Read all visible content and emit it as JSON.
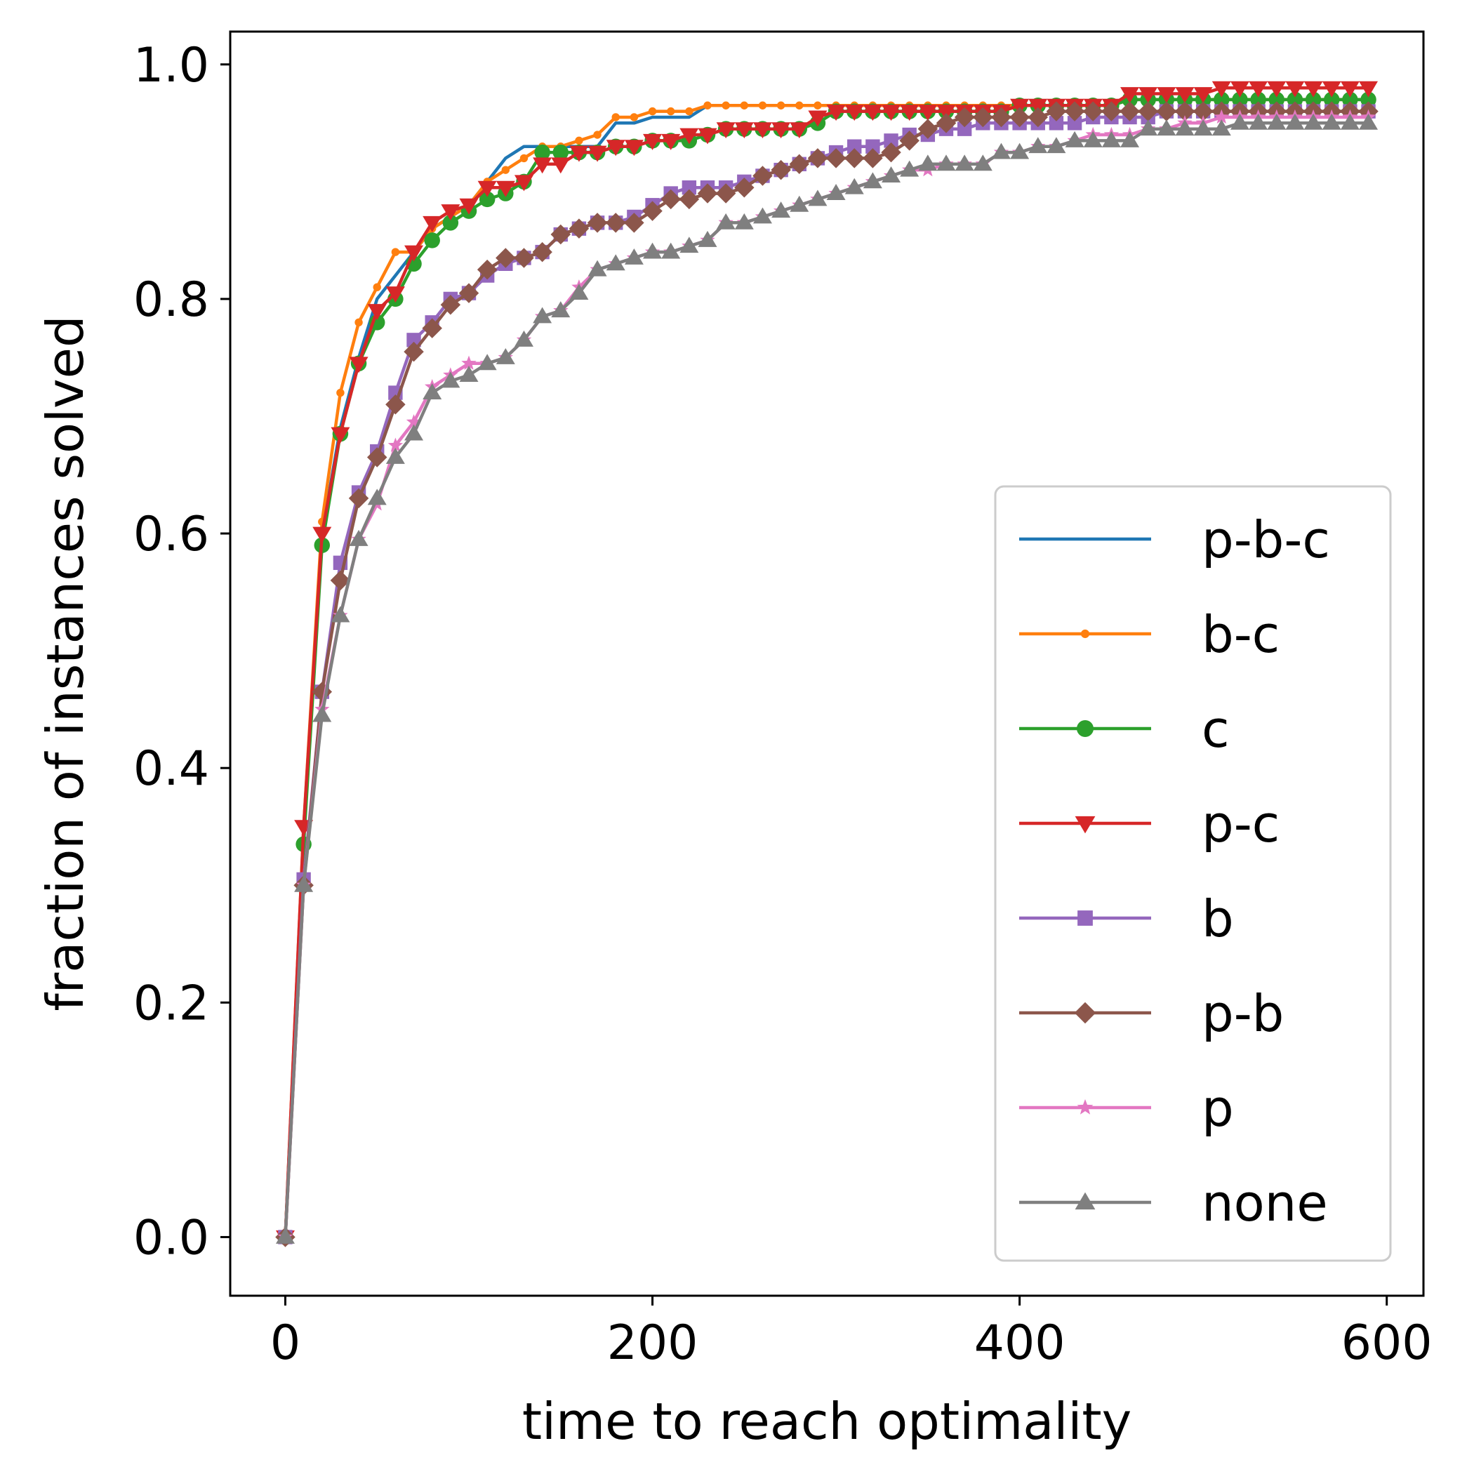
{
  "chart_data": {
    "type": "line",
    "title": "",
    "xlabel": "time to reach optimality",
    "ylabel": "fraction of instances solved",
    "xlim": [
      -30,
      620
    ],
    "ylim": [
      -0.05,
      1.028
    ],
    "xticks": [
      0,
      200,
      400,
      600
    ],
    "xtick_labels": [
      "0",
      "200",
      "400",
      "600"
    ],
    "yticks": [
      0.0,
      0.2,
      0.4,
      0.6,
      0.8,
      1.0
    ],
    "ytick_labels": [
      "0.0",
      "0.2",
      "0.4",
      "0.6",
      "0.8",
      "1.0"
    ],
    "grid": false,
    "legend_position": "lower-right",
    "x": [
      0,
      10,
      20,
      30,
      40,
      50,
      60,
      70,
      80,
      90,
      100,
      110,
      120,
      130,
      140,
      150,
      160,
      170,
      180,
      190,
      200,
      210,
      220,
      230,
      240,
      250,
      260,
      270,
      280,
      290,
      300,
      310,
      320,
      330,
      340,
      350,
      360,
      370,
      380,
      390,
      400,
      410,
      420,
      430,
      440,
      450,
      460,
      470,
      480,
      490,
      500,
      510,
      520,
      530,
      540,
      550,
      560,
      570,
      580,
      590
    ],
    "series": [
      {
        "name": "p-b-c",
        "color": "#1f77b4",
        "marker": "none",
        "values": [
          0.0,
          0.34,
          0.6,
          0.69,
          0.75,
          0.8,
          0.82,
          0.84,
          0.86,
          0.87,
          0.88,
          0.9,
          0.92,
          0.93,
          0.93,
          0.93,
          0.93,
          0.93,
          0.95,
          0.95,
          0.955,
          0.955,
          0.955,
          0.965,
          0.965,
          0.965,
          0.965,
          0.965,
          0.965,
          0.965,
          0.965,
          0.965,
          0.965,
          0.965,
          0.965,
          0.965,
          0.965,
          0.965,
          0.965,
          0.965,
          0.965,
          0.965,
          0.965,
          0.965,
          0.965,
          0.965,
          0.97,
          0.97,
          0.97,
          0.97,
          0.97,
          0.97,
          0.97,
          0.97,
          0.97,
          0.97,
          0.97,
          0.97,
          0.97,
          0.97
        ]
      },
      {
        "name": "b-c",
        "color": "#ff7f0e",
        "marker": "point",
        "values": [
          0.0,
          0.35,
          0.61,
          0.72,
          0.78,
          0.81,
          0.84,
          0.84,
          0.86,
          0.87,
          0.88,
          0.9,
          0.91,
          0.92,
          0.93,
          0.93,
          0.935,
          0.94,
          0.955,
          0.955,
          0.96,
          0.96,
          0.96,
          0.965,
          0.965,
          0.965,
          0.965,
          0.965,
          0.965,
          0.965,
          0.965,
          0.965,
          0.965,
          0.965,
          0.965,
          0.965,
          0.965,
          0.965,
          0.965,
          0.965,
          0.965,
          0.965,
          0.965,
          0.965,
          0.965,
          0.965,
          0.97,
          0.97,
          0.97,
          0.97,
          0.97,
          0.97,
          0.97,
          0.97,
          0.97,
          0.97,
          0.97,
          0.97,
          0.97,
          0.97
        ]
      },
      {
        "name": "c",
        "color": "#2ca02c",
        "marker": "circle",
        "values": [
          0.0,
          0.335,
          0.59,
          0.685,
          0.745,
          0.78,
          0.8,
          0.83,
          0.85,
          0.865,
          0.875,
          0.885,
          0.89,
          0.9,
          0.925,
          0.925,
          0.925,
          0.925,
          0.93,
          0.93,
          0.935,
          0.935,
          0.935,
          0.94,
          0.945,
          0.945,
          0.945,
          0.945,
          0.945,
          0.95,
          0.96,
          0.96,
          0.96,
          0.96,
          0.96,
          0.96,
          0.96,
          0.96,
          0.96,
          0.96,
          0.965,
          0.965,
          0.965,
          0.965,
          0.965,
          0.965,
          0.97,
          0.97,
          0.97,
          0.97,
          0.97,
          0.97,
          0.97,
          0.97,
          0.97,
          0.97,
          0.97,
          0.97,
          0.97,
          0.97
        ]
      },
      {
        "name": "p-c",
        "color": "#d62728",
        "marker": "triangle-down",
        "values": [
          0.0,
          0.35,
          0.6,
          0.685,
          0.745,
          0.79,
          0.805,
          0.84,
          0.865,
          0.875,
          0.88,
          0.895,
          0.895,
          0.9,
          0.915,
          0.915,
          0.925,
          0.925,
          0.93,
          0.93,
          0.935,
          0.935,
          0.94,
          0.94,
          0.945,
          0.945,
          0.945,
          0.945,
          0.945,
          0.955,
          0.96,
          0.96,
          0.96,
          0.96,
          0.96,
          0.96,
          0.96,
          0.96,
          0.96,
          0.96,
          0.965,
          0.965,
          0.965,
          0.965,
          0.965,
          0.965,
          0.975,
          0.975,
          0.975,
          0.975,
          0.975,
          0.98,
          0.98,
          0.98,
          0.98,
          0.98,
          0.98,
          0.98,
          0.98,
          0.98
        ]
      },
      {
        "name": "b",
        "color": "#9467bd",
        "marker": "square",
        "values": [
          0.0,
          0.305,
          0.465,
          0.575,
          0.635,
          0.67,
          0.72,
          0.765,
          0.78,
          0.8,
          0.805,
          0.82,
          0.83,
          0.835,
          0.84,
          0.855,
          0.86,
          0.865,
          0.865,
          0.87,
          0.88,
          0.89,
          0.895,
          0.895,
          0.895,
          0.9,
          0.905,
          0.91,
          0.915,
          0.92,
          0.925,
          0.93,
          0.93,
          0.935,
          0.94,
          0.94,
          0.945,
          0.945,
          0.95,
          0.95,
          0.95,
          0.95,
          0.95,
          0.95,
          0.955,
          0.955,
          0.955,
          0.955,
          0.96,
          0.96,
          0.96,
          0.96,
          0.96,
          0.96,
          0.96,
          0.96,
          0.96,
          0.96,
          0.96,
          0.96
        ]
      },
      {
        "name": "p-b",
        "color": "#8c564b",
        "marker": "diamond",
        "values": [
          0.0,
          0.3,
          0.465,
          0.56,
          0.63,
          0.665,
          0.71,
          0.755,
          0.775,
          0.795,
          0.805,
          0.825,
          0.835,
          0.835,
          0.84,
          0.855,
          0.86,
          0.865,
          0.865,
          0.865,
          0.875,
          0.885,
          0.885,
          0.89,
          0.89,
          0.895,
          0.905,
          0.91,
          0.915,
          0.92,
          0.92,
          0.92,
          0.92,
          0.925,
          0.935,
          0.945,
          0.95,
          0.955,
          0.955,
          0.955,
          0.955,
          0.955,
          0.96,
          0.96,
          0.96,
          0.96,
          0.96,
          0.96,
          0.96,
          0.96,
          0.96,
          0.96,
          0.96,
          0.96,
          0.96,
          0.96,
          0.96,
          0.96,
          0.96,
          0.96
        ]
      },
      {
        "name": "p",
        "color": "#e377c2",
        "marker": "star",
        "values": [
          0.0,
          0.3,
          0.45,
          0.53,
          0.595,
          0.625,
          0.675,
          0.695,
          0.725,
          0.735,
          0.745,
          0.745,
          0.75,
          0.765,
          0.785,
          0.79,
          0.81,
          0.825,
          0.83,
          0.835,
          0.84,
          0.84,
          0.845,
          0.85,
          0.865,
          0.865,
          0.87,
          0.875,
          0.88,
          0.885,
          0.89,
          0.895,
          0.9,
          0.905,
          0.91,
          0.91,
          0.915,
          0.915,
          0.915,
          0.925,
          0.925,
          0.93,
          0.93,
          0.935,
          0.94,
          0.94,
          0.94,
          0.945,
          0.945,
          0.95,
          0.95,
          0.955,
          0.955,
          0.955,
          0.955,
          0.955,
          0.955,
          0.955,
          0.955,
          0.955
        ]
      },
      {
        "name": "none",
        "color": "#7f7f7f",
        "marker": "triangle-up",
        "values": [
          0.0,
          0.3,
          0.445,
          0.53,
          0.595,
          0.63,
          0.665,
          0.685,
          0.72,
          0.73,
          0.735,
          0.745,
          0.75,
          0.765,
          0.785,
          0.79,
          0.805,
          0.825,
          0.83,
          0.835,
          0.84,
          0.84,
          0.845,
          0.85,
          0.865,
          0.865,
          0.87,
          0.875,
          0.88,
          0.885,
          0.89,
          0.895,
          0.9,
          0.905,
          0.91,
          0.915,
          0.915,
          0.915,
          0.915,
          0.925,
          0.925,
          0.93,
          0.93,
          0.935,
          0.935,
          0.935,
          0.935,
          0.945,
          0.945,
          0.945,
          0.945,
          0.945,
          0.95,
          0.95,
          0.95,
          0.95,
          0.95,
          0.95,
          0.95,
          0.95
        ]
      }
    ]
  }
}
